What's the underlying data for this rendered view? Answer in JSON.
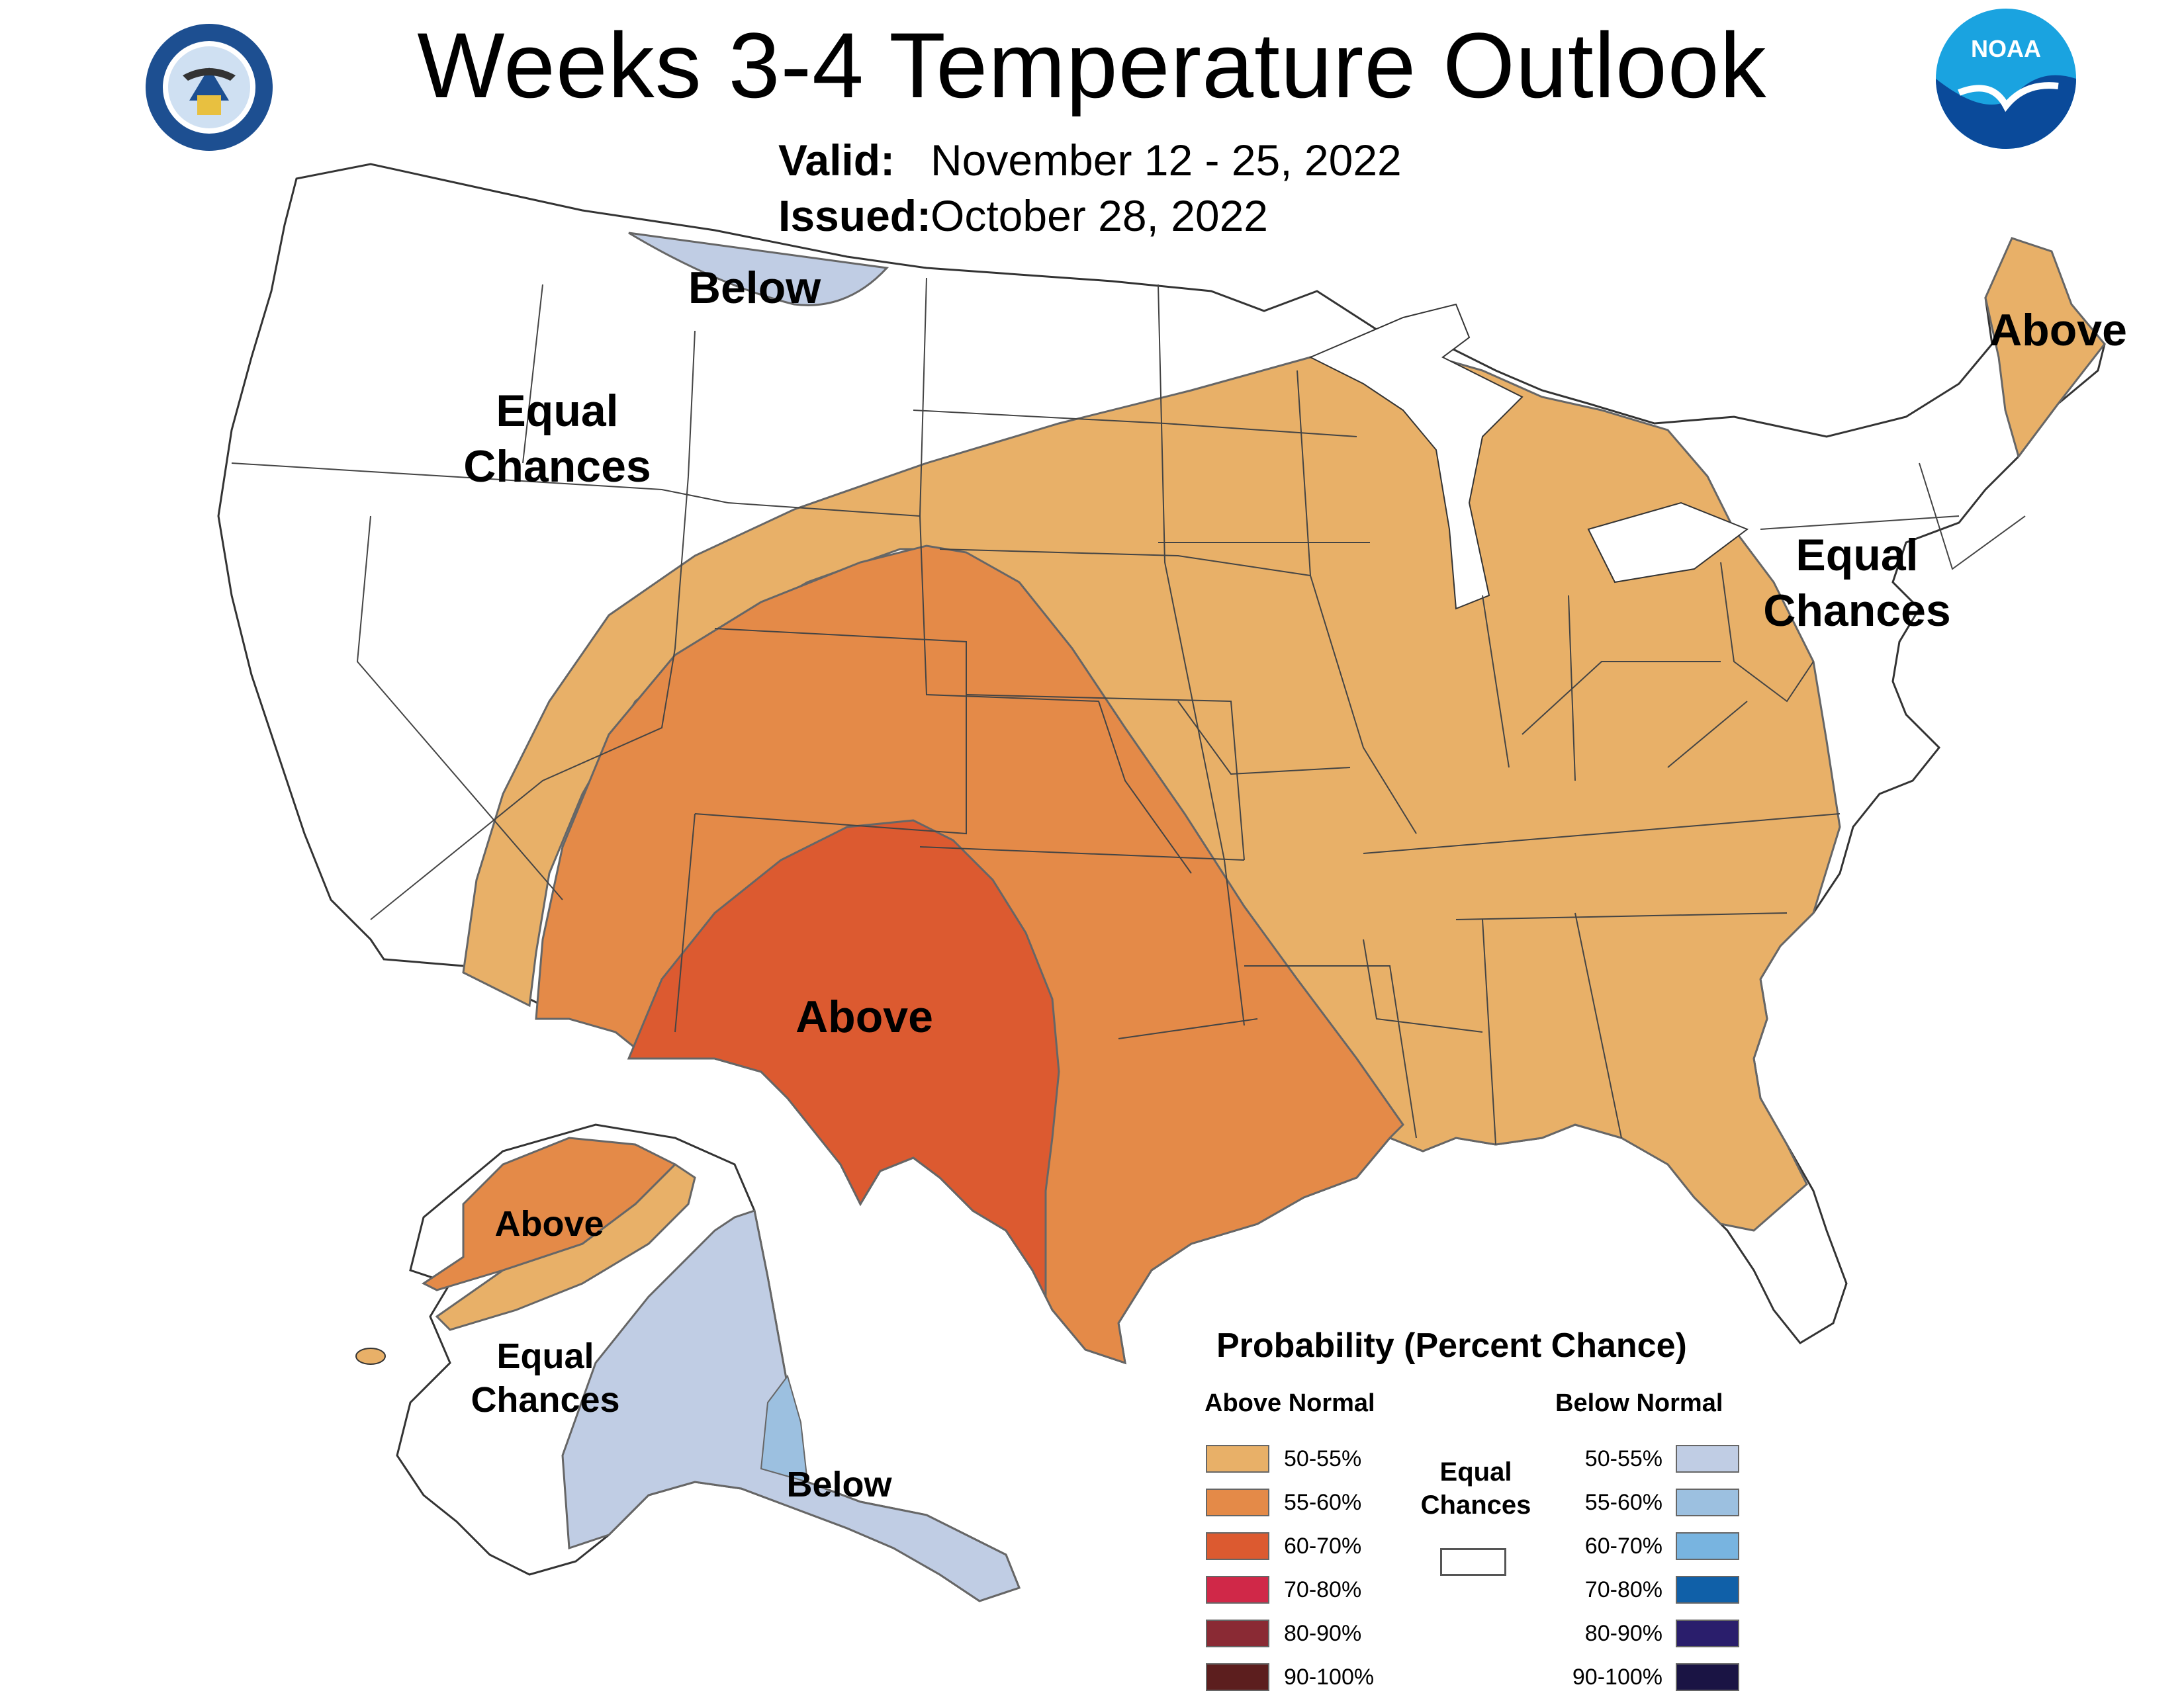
{
  "header": {
    "title": "Weeks 3-4 Temperature Outlook",
    "valid_label": "Valid:",
    "valid_value": "November 12 - 25, 2022",
    "issued_label": "Issued:",
    "issued_value": "October 28, 2022"
  },
  "logos": {
    "commerce_seal_text": "DEPARTMENT OF COMMERCE · UNITED STATES OF AMERICA",
    "noaa_text": "NOAA"
  },
  "map_labels": {
    "below_north": "Below",
    "equal_west_1": "Equal",
    "equal_west_2": "Chances",
    "above_maine": "Above",
    "equal_east_1": "Equal",
    "equal_east_2": "Chances",
    "above_south": "Above",
    "above_alaska": "Above",
    "equal_alaska_1": "Equal",
    "equal_alaska_2": "Chances",
    "below_alaska": "Below"
  },
  "legend": {
    "title": "Probability (Percent Chance)",
    "above_header": "Above Normal",
    "below_header": "Below Normal",
    "equal_1": "Equal",
    "equal_2": "Chances",
    "above": [
      {
        "label": "50-55%",
        "color": "#e8b068"
      },
      {
        "label": "55-60%",
        "color": "#e48a48"
      },
      {
        "label": "60-70%",
        "color": "#dc5a30"
      },
      {
        "label": "70-80%",
        "color": "#d02848"
      },
      {
        "label": "80-90%",
        "color": "#8a2a34"
      },
      {
        "label": "90-100%",
        "color": "#5c1e1e"
      }
    ],
    "below": [
      {
        "label": "50-55%",
        "color": "#c0cde4"
      },
      {
        "label": "55-60%",
        "color": "#9cc0e0"
      },
      {
        "label": "60-70%",
        "color": "#78b4e0"
      },
      {
        "label": "70-80%",
        "color": "#1060a8"
      },
      {
        "label": "80-90%",
        "color": "#2a1e6c"
      },
      {
        "label": "90-100%",
        "color": "#1a1444"
      }
    ]
  }
}
